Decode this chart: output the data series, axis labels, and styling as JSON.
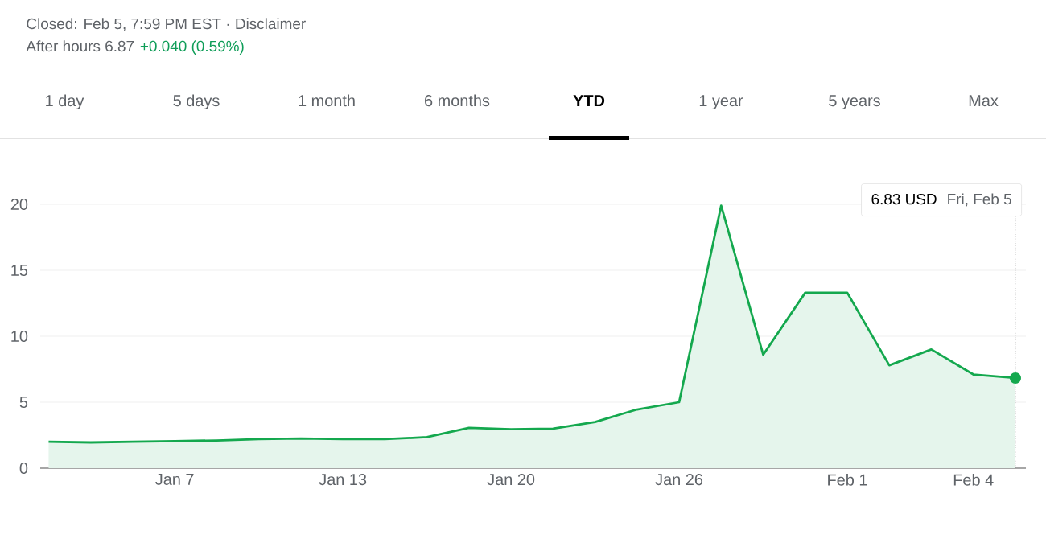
{
  "chart_data": {
    "type": "area",
    "color": "#14a84e",
    "categories": [
      null,
      null,
      null,
      "Jan 7",
      null,
      null,
      null,
      "Jan 13",
      null,
      null,
      null,
      "Jan 20",
      null,
      null,
      null,
      "Jan 26",
      null,
      null,
      null,
      "Feb 1",
      null,
      null,
      "Feb 4",
      null
    ],
    "values": [
      2.0,
      1.95,
      2.0,
      2.05,
      2.1,
      2.2,
      2.25,
      2.2,
      2.2,
      2.35,
      3.05,
      2.95,
      3.0,
      3.5,
      4.45,
      5.0,
      19.9,
      8.6,
      13.3,
      13.3,
      7.8,
      9.0,
      7.1,
      6.83
    ],
    "ylim": [
      0,
      20
    ],
    "yticks": [
      0,
      5,
      10,
      15,
      20
    ],
    "grid": "y",
    "annotations": [
      "Closed: Feb 5, 7:59 PM EST · Disclaimer",
      "After hours 6.87",
      "+0.040 (0.59%)",
      "1 day",
      "5 days",
      "1 month",
      "6 months",
      "YTD",
      "1 year",
      "5 years",
      "Max",
      "6.83 USD",
      "Fri, Feb 5"
    ]
  }
}
